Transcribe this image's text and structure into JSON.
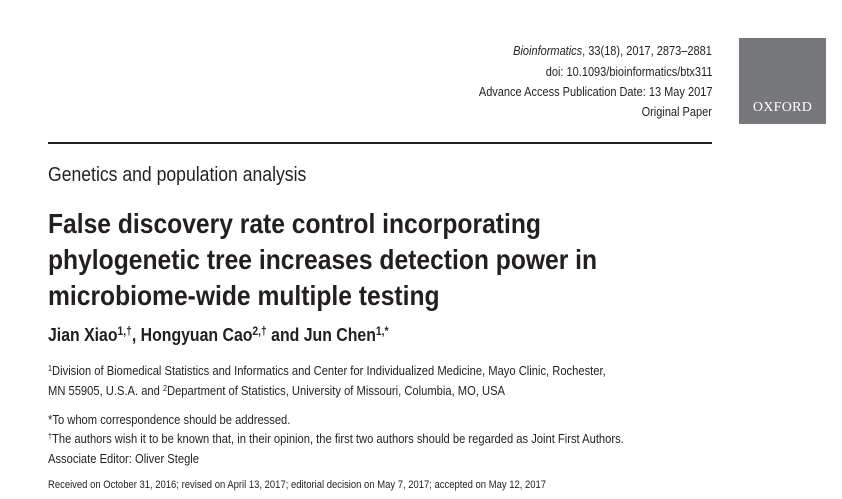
{
  "meta": {
    "journal": "Bioinformatics",
    "citation": ", 33(18), 2017, 2873–2881",
    "doi": "doi: 10.1093/bioinformatics/btx311",
    "pub_date": "Advance Access Publication Date: 13 May 2017",
    "article_type": "Original Paper"
  },
  "logo": {
    "text": "OXFORD",
    "color": "#77787b"
  },
  "section": "Genetics and population analysis",
  "title_lines": [
    "False discovery rate control incorporating",
    "phylogenetic tree increases detection power in",
    "microbiome-wide multiple testing"
  ],
  "authors": [
    {
      "name": "Jian Xiao",
      "sup": "1,†",
      "sep": ", "
    },
    {
      "name": "Hongyuan Cao",
      "sup": "2,†",
      "sep": " and "
    },
    {
      "name": "Jun Chen",
      "sup": "1,*",
      "sep": ""
    }
  ],
  "affiliations": {
    "line1_sup": "1",
    "line1": "Division of Biomedical Statistics and Informatics and Center for Individualized Medicine, Mayo Clinic, Rochester,",
    "line2_pre": "MN 55905, U.S.A. and ",
    "line2_sup": "2",
    "line2": "Department of Statistics, University of Missouri, Columbia, MO, USA"
  },
  "notes": {
    "correspondence": "*To whom correspondence should be addressed.",
    "joint_sup": "†",
    "joint": "The authors wish it to be known that, in their opinion, the first two authors should be regarded as Joint First Authors.",
    "editor": "Associate Editor: Oliver Stegle"
  },
  "history": "Received on October 31, 2016; revised on April 13, 2017; editorial decision on May 7, 2017; accepted on May 12, 2017"
}
